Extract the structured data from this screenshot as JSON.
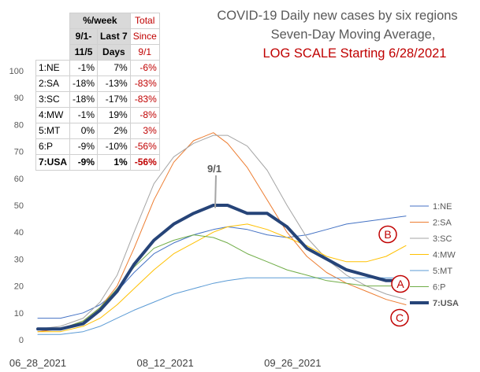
{
  "chart_data": {
    "type": "line",
    "title_lines": [
      "COVID-19 Daily new cases by six regions",
      "Seven-Day Moving Average,"
    ],
    "title_red_line": "LOG SCALE Starting 6/28/2021",
    "y_scale": "linear",
    "ylim": [
      0,
      100
    ],
    "yticks": [
      "0",
      "10",
      "20",
      "30",
      "40",
      "50",
      "60",
      "70",
      "80",
      "90",
      "100"
    ],
    "xlim": [
      "2021-06-28",
      "2021-11-05"
    ],
    "xtick_labels": [
      "06_28_2021",
      "08_12_2021",
      "09_26_2021"
    ],
    "annotation": "9/1",
    "markers": [
      "A",
      "B",
      "C"
    ],
    "grid": false,
    "legend_position": "right",
    "series": [
      {
        "name": "1:NE",
        "color": "#4472C4",
        "width": 1,
        "x": [
          "2021-06-28",
          "2021-07-06",
          "2021-07-14",
          "2021-07-20",
          "2021-07-26",
          "2021-08-01",
          "2021-08-08",
          "2021-08-15",
          "2021-08-22",
          "2021-08-29",
          "2021-09-03",
          "2021-09-10",
          "2021-09-17",
          "2021-09-24",
          "2021-10-01",
          "2021-10-08",
          "2021-10-15",
          "2021-10-22",
          "2021-10-29",
          "2021-11-05"
        ],
        "values": [
          8,
          8,
          10,
          13,
          18,
          25,
          32,
          36,
          39,
          41,
          42,
          41,
          39,
          38,
          39,
          41,
          43,
          44,
          45,
          46
        ]
      },
      {
        "name": "2:SA",
        "color": "#ED7D31",
        "width": 1,
        "x": [
          "2021-06-28",
          "2021-07-06",
          "2021-07-14",
          "2021-07-20",
          "2021-07-26",
          "2021-08-01",
          "2021-08-08",
          "2021-08-15",
          "2021-08-22",
          "2021-08-29",
          "2021-09-03",
          "2021-09-10",
          "2021-09-17",
          "2021-09-24",
          "2021-10-01",
          "2021-10-08",
          "2021-10-15",
          "2021-10-22",
          "2021-10-29",
          "2021-11-05"
        ],
        "values": [
          3,
          4,
          7,
          12,
          20,
          34,
          52,
          66,
          74,
          77,
          73,
          64,
          52,
          40,
          31,
          25,
          21,
          18,
          15,
          13
        ]
      },
      {
        "name": "3:SC",
        "color": "#A5A5A5",
        "width": 1,
        "x": [
          "2021-06-28",
          "2021-07-06",
          "2021-07-14",
          "2021-07-20",
          "2021-07-26",
          "2021-08-01",
          "2021-08-08",
          "2021-08-15",
          "2021-08-22",
          "2021-08-29",
          "2021-09-03",
          "2021-09-10",
          "2021-09-17",
          "2021-09-24",
          "2021-10-01",
          "2021-10-08",
          "2021-10-15",
          "2021-10-22",
          "2021-10-29",
          "2021-11-05"
        ],
        "values": [
          4,
          5,
          8,
          14,
          24,
          40,
          58,
          68,
          73,
          76,
          76,
          72,
          63,
          50,
          38,
          30,
          24,
          20,
          17,
          15
        ]
      },
      {
        "name": "4:MW",
        "color": "#FFC000",
        "width": 1,
        "x": [
          "2021-06-28",
          "2021-07-06",
          "2021-07-14",
          "2021-07-20",
          "2021-07-26",
          "2021-08-01",
          "2021-08-08",
          "2021-08-15",
          "2021-08-22",
          "2021-08-29",
          "2021-09-03",
          "2021-09-10",
          "2021-09-17",
          "2021-09-24",
          "2021-10-01",
          "2021-10-08",
          "2021-10-15",
          "2021-10-22",
          "2021-10-29",
          "2021-11-05"
        ],
        "values": [
          3,
          3,
          5,
          8,
          13,
          19,
          26,
          32,
          36,
          40,
          42,
          43,
          41,
          38,
          35,
          31,
          29,
          29,
          31,
          35
        ]
      },
      {
        "name": "5:MT",
        "color": "#5B9BD5",
        "width": 1,
        "x": [
          "2021-06-28",
          "2021-07-06",
          "2021-07-14",
          "2021-07-20",
          "2021-07-26",
          "2021-08-01",
          "2021-08-08",
          "2021-08-15",
          "2021-08-22",
          "2021-08-29",
          "2021-09-03",
          "2021-09-10",
          "2021-09-17",
          "2021-09-24",
          "2021-10-01",
          "2021-10-08",
          "2021-10-15",
          "2021-10-22",
          "2021-10-29",
          "2021-11-05"
        ],
        "values": [
          2,
          2,
          3,
          5,
          8,
          11,
          14,
          17,
          19,
          21,
          22,
          23,
          23,
          23,
          23,
          23,
          23,
          23,
          23,
          23
        ]
      },
      {
        "name": "6:P",
        "color": "#70AD47",
        "width": 1,
        "x": [
          "2021-06-28",
          "2021-07-06",
          "2021-07-14",
          "2021-07-20",
          "2021-07-26",
          "2021-08-01",
          "2021-08-08",
          "2021-08-15",
          "2021-08-22",
          "2021-08-29",
          "2021-09-03",
          "2021-09-10",
          "2021-09-17",
          "2021-09-24",
          "2021-10-01",
          "2021-10-08",
          "2021-10-15",
          "2021-10-22",
          "2021-10-29",
          "2021-11-05"
        ],
        "values": [
          4,
          4,
          7,
          12,
          19,
          27,
          34,
          37,
          39,
          38,
          36,
          32,
          29,
          26,
          24,
          22,
          21,
          20,
          20,
          20
        ]
      },
      {
        "name": "7:USA",
        "color": "#264478",
        "width": 4,
        "x": [
          "2021-06-28",
          "2021-07-06",
          "2021-07-14",
          "2021-07-20",
          "2021-07-26",
          "2021-08-01",
          "2021-08-08",
          "2021-08-15",
          "2021-08-22",
          "2021-08-29",
          "2021-09-03",
          "2021-09-10",
          "2021-09-17",
          "2021-09-24",
          "2021-10-01",
          "2021-10-08",
          "2021-10-15",
          "2021-10-22",
          "2021-10-29",
          "2021-11-05"
        ],
        "values": [
          4,
          4,
          6,
          11,
          18,
          28,
          37,
          43,
          47,
          50,
          50,
          47,
          47,
          42,
          34,
          30,
          26,
          24,
          22,
          22
        ]
      }
    ]
  },
  "table": {
    "header_group": "%/week",
    "header_total_top": "Total",
    "header_col1": "9/1-",
    "header_col2": "Last 7",
    "header_col3": "Since",
    "header_col1_b": "11/5",
    "header_col2_b": "Days",
    "header_col3_b": "9/1",
    "rows": [
      {
        "region": "1:NE",
        "c1": "-1%",
        "c2": "7%",
        "c3": "-6%"
      },
      {
        "region": "2:SA",
        "c1": "-18%",
        "c2": "-13%",
        "c3": "-83%"
      },
      {
        "region": "3:SC",
        "c1": "-18%",
        "c2": "-17%",
        "c3": "-83%"
      },
      {
        "region": "4:MW",
        "c1": "-1%",
        "c2": "19%",
        "c3": "-8%"
      },
      {
        "region": "5:MT",
        "c1": "0%",
        "c2": "2%",
        "c3": "3%"
      },
      {
        "region": "6:P",
        "c1": "-9%",
        "c2": "-10%",
        "c3": "-56%"
      },
      {
        "region": "7:USA",
        "c1": "-9%",
        "c2": "1%",
        "c3": "-56%"
      }
    ]
  },
  "colors": {
    "accent_red": "#C00000",
    "usa_line": "#264478"
  }
}
